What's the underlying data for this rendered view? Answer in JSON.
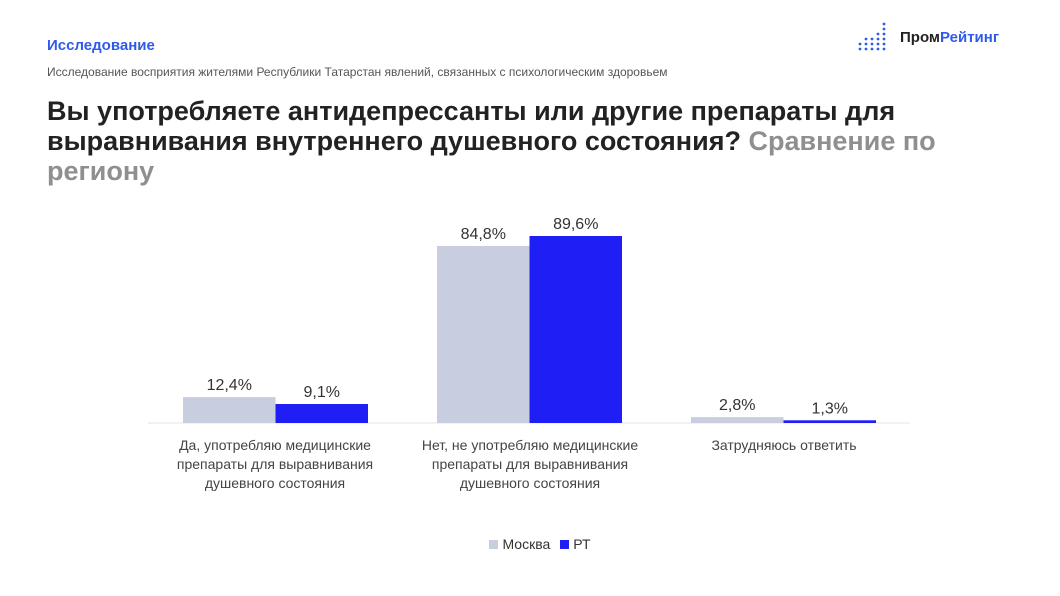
{
  "header": {
    "kicker": "Исследование",
    "subtitle": "Исследование восприятия жителями Республики Татарстан явлений, связанных с психологическим здоровьем",
    "title_main": "Вы употребляете антидепрессанты или другие препараты для выравнивания внутреннего душевного состояния?",
    "title_suffix": "Сравнение по региону"
  },
  "logo": {
    "part1": "Пром",
    "part2": "Рейтинг"
  },
  "chart_data": {
    "type": "bar",
    "categories": [
      "Да, употребляю медицинские препараты для выравнивания душевного состояния",
      "Нет, не употребляю медицинские препараты для выравнивания душевного состояния",
      "Затрудняюсь ответить"
    ],
    "series": [
      {
        "name": "Москва",
        "values": [
          12.4,
          84.8,
          2.8
        ],
        "labels": [
          "12,4%",
          "84,8%",
          "2,8%"
        ],
        "color": "#c8cde0"
      },
      {
        "name": "РТ",
        "values": [
          9.1,
          89.6,
          1.3
        ],
        "labels": [
          "9,1%",
          "89,6%",
          "1,3%"
        ],
        "color": "#1f1ff5"
      }
    ],
    "ylim": [
      0,
      100
    ],
    "grid": false,
    "legend": "bottom"
  }
}
